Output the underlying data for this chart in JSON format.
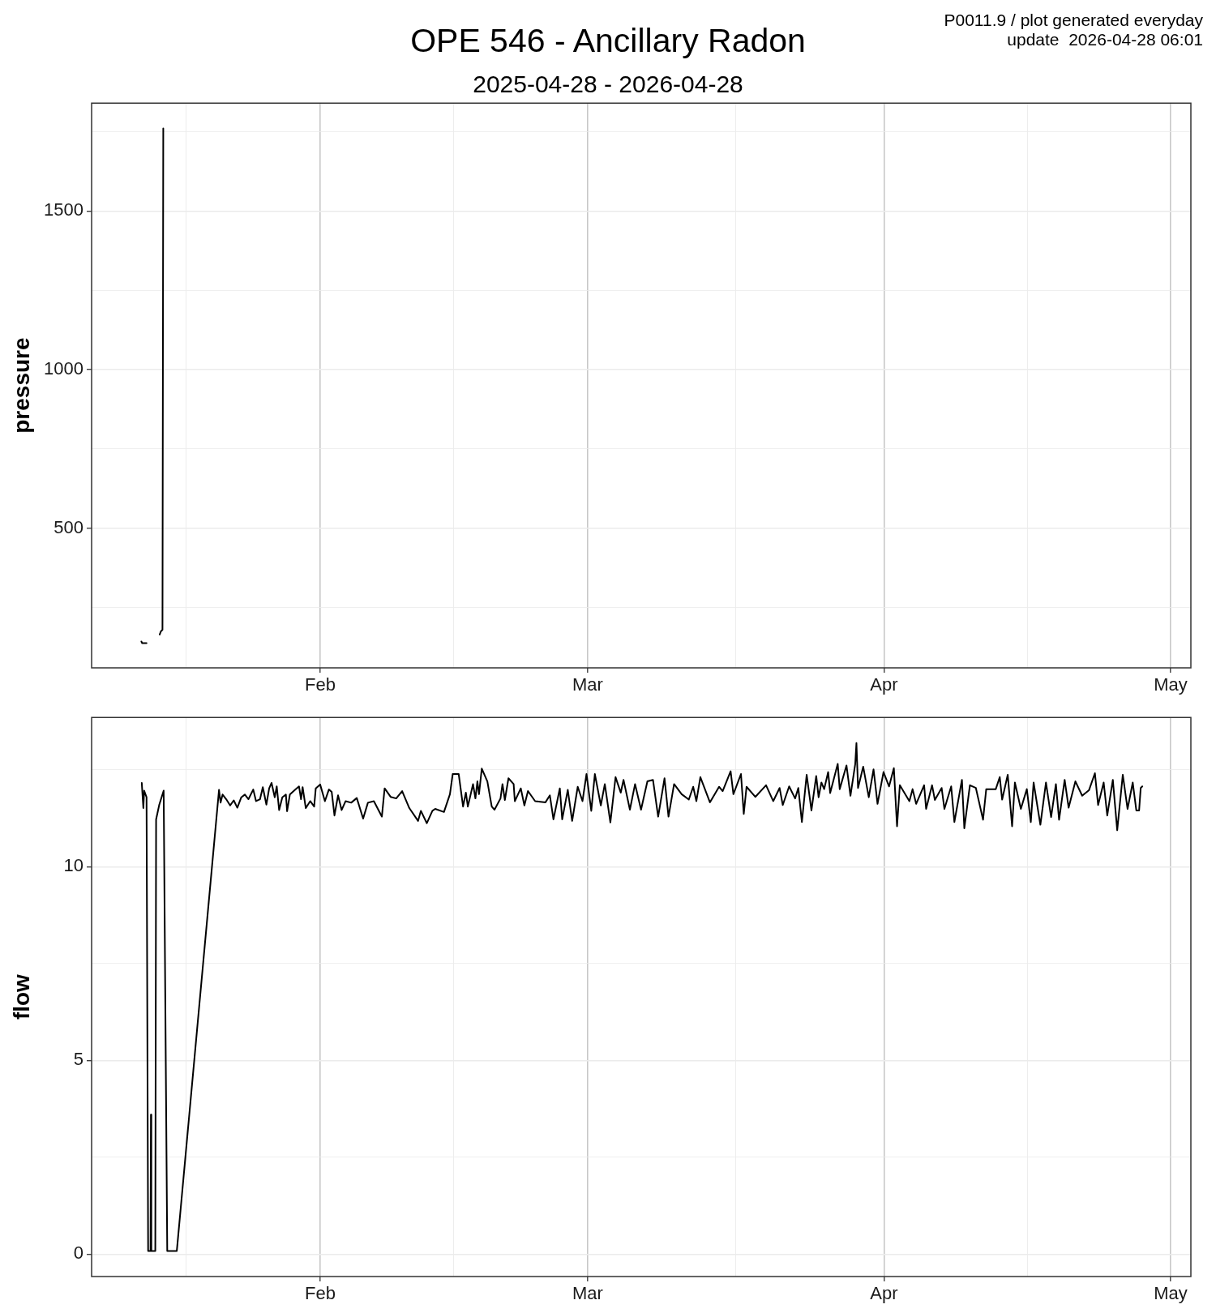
{
  "chart_data": [
    {
      "type": "line",
      "title": "OPE 546 - Ancillary Radon",
      "subtitle": "2025-04-28 - 2026-04-28",
      "annotations": [
        "P0011.9 / plot generated everyday",
        "update  2026-04-28 06:01"
      ],
      "ylabel": "pressure",
      "x": [
        "2026-01-13T07:00",
        "2026-01-13T09:00",
        "2026-01-13T20:00",
        "2026-01-14T12:00",
        "2026-01-15T05:00",
        "2026-01-15T08:00",
        "2026-01-15T12:00",
        "2026-01-15T14:00"
      ],
      "values": [
        143,
        138,
        138,
        null,
        165,
        175,
        180,
        1760
      ],
      "color": "#000000",
      "xlim": [
        "2026-01-08T02:00",
        "2026-05-03T03:00"
      ],
      "ylim": [
        60,
        1840
      ],
      "xticks": [
        {
          "value": "2026-01-18",
          "label": null
        },
        {
          "value": "2026-02-01",
          "label": "Feb"
        },
        {
          "value": "2026-02-15",
          "label": null
        },
        {
          "value": "2026-03-01",
          "label": "Mar"
        },
        {
          "value": "2026-03-16T12:00",
          "label": null
        },
        {
          "value": "2026-04-01",
          "label": "Apr"
        },
        {
          "value": "2026-04-16",
          "label": null
        },
        {
          "value": "2026-05-01",
          "label": "May"
        }
      ],
      "yticks": [
        {
          "value": 250,
          "label": null
        },
        500,
        {
          "value": 750,
          "label": null
        },
        1000,
        {
          "value": 1250,
          "label": null
        },
        1500,
        {
          "value": 1750,
          "label": null
        }
      ],
      "grid": true
    },
    {
      "type": "line",
      "ylabel": "flow",
      "x": [
        "2026-01-13T08:00",
        "2026-01-13T12:00",
        "2026-01-13T14:00",
        "2026-01-13T20:00",
        "2026-01-14T00:00",
        "2026-01-14T06:00",
        "2026-01-14T07:00",
        "2026-01-14T08:00",
        "2026-01-14T18:00",
        "2026-01-14T20:00",
        "2026-01-15T04:00",
        "2026-01-15T11:00",
        "2026-01-15T15:00",
        "2026-01-16T00:00",
        "2026-01-17T00:00",
        "2026-01-21T10:00",
        "2026-01-21T14:00",
        "2026-01-21T19:00",
        "2026-01-22T04:00",
        "2026-01-22T14:00",
        "2026-01-22T23:00",
        "2026-01-23T08:00",
        "2026-01-23T18:00",
        "2026-01-24T03:00",
        "2026-01-24T12:00",
        "2026-01-25T00:00",
        "2026-01-25T07:00",
        "2026-01-25T17:00",
        "2026-01-26T00:00",
        "2026-01-26T09:00",
        "2026-01-26T16:00",
        "2026-01-26T22:00",
        "2026-01-27T06:00",
        "2026-01-27T11:00",
        "2026-01-27T17:00",
        "2026-01-28T01:00",
        "2026-01-28T10:00",
        "2026-01-28T13:00",
        "2026-01-28T20:00",
        "2026-01-29T10:00",
        "2026-01-29T19:00",
        "2026-01-30T00:00",
        "2026-01-30T04:00",
        "2026-01-30T12:00",
        "2026-01-30T23:00",
        "2026-01-31T09:00",
        "2026-01-31T13:00",
        "2026-02-01T00:00",
        "2026-02-01T12:00",
        "2026-02-01T22:00",
        "2026-02-02T05:00",
        "2026-02-02T12:00",
        "2026-02-02T21:00",
        "2026-02-03T06:00",
        "2026-02-03T16:00",
        "2026-02-04T06:00",
        "2026-02-04T20:00",
        "2026-02-05T12:00",
        "2026-02-06T00:00",
        "2026-02-06T15:00",
        "2026-02-07T11:00",
        "2026-02-07T18:00",
        "2026-02-08T09:00",
        "2026-02-08T23:00",
        "2026-02-09T14:00",
        "2026-02-10T08:00",
        "2026-02-11T06:00",
        "2026-02-11T13:00",
        "2026-02-12T04:00",
        "2026-02-12T18:00",
        "2026-02-13T01:00",
        "2026-02-13T23:00",
        "2026-02-14T14:00",
        "2026-02-14T21:00",
        "2026-02-15T12:00",
        "2026-02-15T23:00",
        "2026-02-16T06:00",
        "2026-02-16T11:00",
        "2026-02-17T00:00",
        "2026-02-17T06:00",
        "2026-02-17T11:00",
        "2026-02-17T15:00",
        "2026-02-17T22:00",
        "2026-02-18T12:00",
        "2026-02-18T23:00",
        "2026-02-19T06:00",
        "2026-02-19T21:00",
        "2026-02-20T02:00",
        "2026-02-20T08:00",
        "2026-02-20T17:00",
        "2026-02-21T06:00",
        "2026-02-21T09:00",
        "2026-02-22T00:00",
        "2026-02-22T09:00",
        "2026-02-22T18:00",
        "2026-02-23T12:00",
        "2026-02-24T14:00",
        "2026-02-25T01:00",
        "2026-02-25T10:00",
        "2026-02-26T02:00",
        "2026-02-26T08:00",
        "2026-02-26T22:00",
        "2026-02-27T09:00",
        "2026-02-27T23:00",
        "2026-02-28T11:00",
        "2026-02-28T21:00",
        "2026-03-01T09:00",
        "2026-03-01T18:00",
        "2026-03-02T09:00",
        "2026-03-02T19:00",
        "2026-03-03T09:00",
        "2026-03-03T22:00",
        "2026-03-04T11:00",
        "2026-03-04T18:00",
        "2026-03-05T10:00",
        "2026-03-05T23:00",
        "2026-03-06T14:00",
        "2026-03-07T06:00",
        "2026-03-07T20:00",
        "2026-03-08T09:00",
        "2026-03-09T01:00",
        "2026-03-09T11:00",
        "2026-03-10T01:00",
        "2026-03-10T20:00",
        "2026-03-11T14:00",
        "2026-03-12T01:00",
        "2026-03-12T09:00",
        "2026-03-12T19:00",
        "2026-03-13T19:00",
        "2026-03-14T18:00",
        "2026-03-15T03:00",
        "2026-03-15T23:00",
        "2026-03-16T06:00",
        "2026-03-17T01:00",
        "2026-03-17T08:00",
        "2026-03-17T15:00",
        "2026-03-18T13:00",
        "2026-03-19T16:00",
        "2026-03-20T10:00",
        "2026-03-21T02:00",
        "2026-03-21T10:00",
        "2026-03-22T02:00",
        "2026-03-22T17:00",
        "2026-03-23T01:00",
        "2026-03-23T10:00",
        "2026-03-23T22:00",
        "2026-03-24T10:00",
        "2026-03-24T22:00",
        "2026-03-25T04:00",
        "2026-03-25T11:00",
        "2026-03-25T18:00",
        "2026-03-26T04:00",
        "2026-03-26T09:00",
        "2026-03-27T04:00",
        "2026-03-27T09:00",
        "2026-03-28T02:00",
        "2026-03-28T12:00",
        "2026-03-29T00:00",
        "2026-03-29T03:00",
        "2026-03-29T07:00",
        "2026-03-29T20:00",
        "2026-03-30T10:00",
        "2026-03-30T22:00",
        "2026-03-31T08:00",
        "2026-03-31T23:00",
        "2026-04-01T13:00",
        "2026-04-02T01:00",
        "2026-04-02T09:00",
        "2026-04-02T16:00",
        "2026-04-03T16:00",
        "2026-04-04T00:00",
        "2026-04-04T09:00",
        "2026-04-05T05:00",
        "2026-04-05T10:00",
        "2026-04-06T01:00",
        "2026-04-06T08:00",
        "2026-04-07T01:00",
        "2026-04-07T08:00",
        "2026-04-08T01:00",
        "2026-04-08T09:00",
        "2026-04-09T04:00",
        "2026-04-09T10:00",
        "2026-04-10T00:00",
        "2026-04-10T15:00",
        "2026-04-11T09:00",
        "2026-04-11T17:00",
        "2026-04-12T17:00",
        "2026-04-13T03:00",
        "2026-04-13T09:00",
        "2026-04-13T23:00",
        "2026-04-14T10:00",
        "2026-04-14T17:00",
        "2026-04-15T08:00",
        "2026-04-15T23:00",
        "2026-04-16T09:00",
        "2026-04-16T16:00",
        "2026-04-17T09:00",
        "2026-04-17T23:00",
        "2026-04-18T12:00",
        "2026-04-19T00:00",
        "2026-04-19T08:00",
        "2026-04-19T22:00",
        "2026-04-20T08:00",
        "2026-04-21T01:00",
        "2026-04-21T18:00",
        "2026-04-22T11:00",
        "2026-04-23T02:00",
        "2026-04-23T10:00",
        "2026-04-24T00:00",
        "2026-04-24T09:00",
        "2026-04-24T23:00",
        "2026-04-25T10:00",
        "2026-04-26T00:00",
        "2026-04-26T12:00",
        "2026-04-27T01:00",
        "2026-04-27T10:00",
        "2026-04-27T17:00",
        "2026-04-27T21:00",
        "2026-04-28T01:00"
      ],
      "values": [
        12.16,
        11.51,
        11.96,
        11.79,
        0.08,
        0.08,
        3.6,
        0.08,
        0.08,
        11.22,
        11.6,
        11.83,
        11.96,
        0.08,
        0.08,
        11.98,
        11.65,
        11.86,
        11.74,
        11.58,
        11.71,
        11.52,
        11.79,
        11.86,
        11.74,
        11.99,
        11.69,
        11.74,
        12.05,
        11.6,
        12.02,
        12.16,
        11.79,
        12.07,
        11.46,
        11.79,
        11.86,
        11.43,
        11.86,
        11.99,
        12.07,
        11.74,
        12.05,
        11.51,
        11.69,
        11.55,
        12.02,
        12.12,
        11.69,
        11.99,
        11.93,
        11.32,
        11.84,
        11.46,
        11.69,
        11.65,
        11.77,
        11.24,
        11.65,
        11.69,
        11.29,
        12.02,
        11.8,
        11.76,
        11.95,
        11.51,
        11.18,
        11.44,
        11.12,
        11.44,
        11.49,
        11.41,
        11.87,
        12.39,
        12.39,
        11.55,
        11.91,
        11.55,
        12.13,
        11.76,
        12.2,
        11.87,
        12.53,
        12.2,
        11.55,
        11.47,
        11.76,
        12.13,
        11.72,
        12.28,
        12.13,
        11.69,
        12.02,
        11.58,
        11.95,
        11.69,
        11.66,
        11.84,
        11.22,
        12.02,
        11.22,
        11.98,
        11.18,
        12.06,
        11.69,
        12.39,
        11.44,
        12.39,
        11.58,
        12.13,
        11.14,
        12.31,
        11.91,
        12.24,
        11.47,
        12.13,
        11.47,
        12.2,
        12.24,
        11.29,
        12.28,
        11.29,
        12.13,
        11.87,
        11.73,
        12.06,
        11.69,
        12.31,
        11.66,
        12.06,
        11.95,
        12.46,
        11.87,
        12.39,
        11.36,
        12.06,
        11.8,
        12.1,
        11.69,
        12.03,
        11.59,
        12.07,
        11.76,
        12.03,
        11.15,
        12.37,
        11.45,
        12.34,
        11.79,
        12.17,
        12.0,
        12.44,
        11.9,
        12.65,
        12.0,
        12.61,
        11.83,
        12.65,
        13.19,
        12.03,
        12.58,
        11.79,
        12.51,
        11.62,
        12.44,
        12.07,
        12.54,
        11.04,
        12.1,
        11.69,
        12.0,
        11.62,
        12.1,
        11.49,
        12.1,
        11.72,
        12.03,
        11.49,
        12.07,
        11.15,
        12.24,
        10.99,
        12.1,
        12.03,
        11.21,
        12.0,
        12.0,
        12.31,
        11.73,
        12.37,
        11.04,
        12.17,
        11.49,
        12.0,
        11.15,
        12.17,
        11.08,
        12.17,
        11.28,
        12.13,
        11.21,
        12.24,
        11.52,
        12.2,
        11.83,
        11.97,
        12.41,
        11.59,
        12.17,
        11.32,
        12.24,
        10.94,
        12.37,
        11.49,
        12.17,
        11.45,
        11.45,
        12.03,
        12.07
      ],
      "color": "#000000",
      "xlim": [
        "2026-01-08T02:00",
        "2026-05-03T03:00"
      ],
      "ylim": [
        -0.58,
        13.85
      ],
      "xticks": [
        {
          "value": "2026-01-18",
          "label": null
        },
        {
          "value": "2026-02-01",
          "label": "Feb"
        },
        {
          "value": "2026-02-15",
          "label": null
        },
        {
          "value": "2026-03-01",
          "label": "Mar"
        },
        {
          "value": "2026-03-16T12:00",
          "label": null
        },
        {
          "value": "2026-04-01",
          "label": "Apr"
        },
        {
          "value": "2026-04-16",
          "label": null
        },
        {
          "value": "2026-05-01",
          "label": "May"
        }
      ],
      "yticks": [
        0,
        {
          "value": 2.5,
          "label": null
        },
        5,
        {
          "value": 7.5,
          "label": null
        },
        10,
        {
          "value": 12.5,
          "label": null
        }
      ],
      "grid": true
    }
  ]
}
